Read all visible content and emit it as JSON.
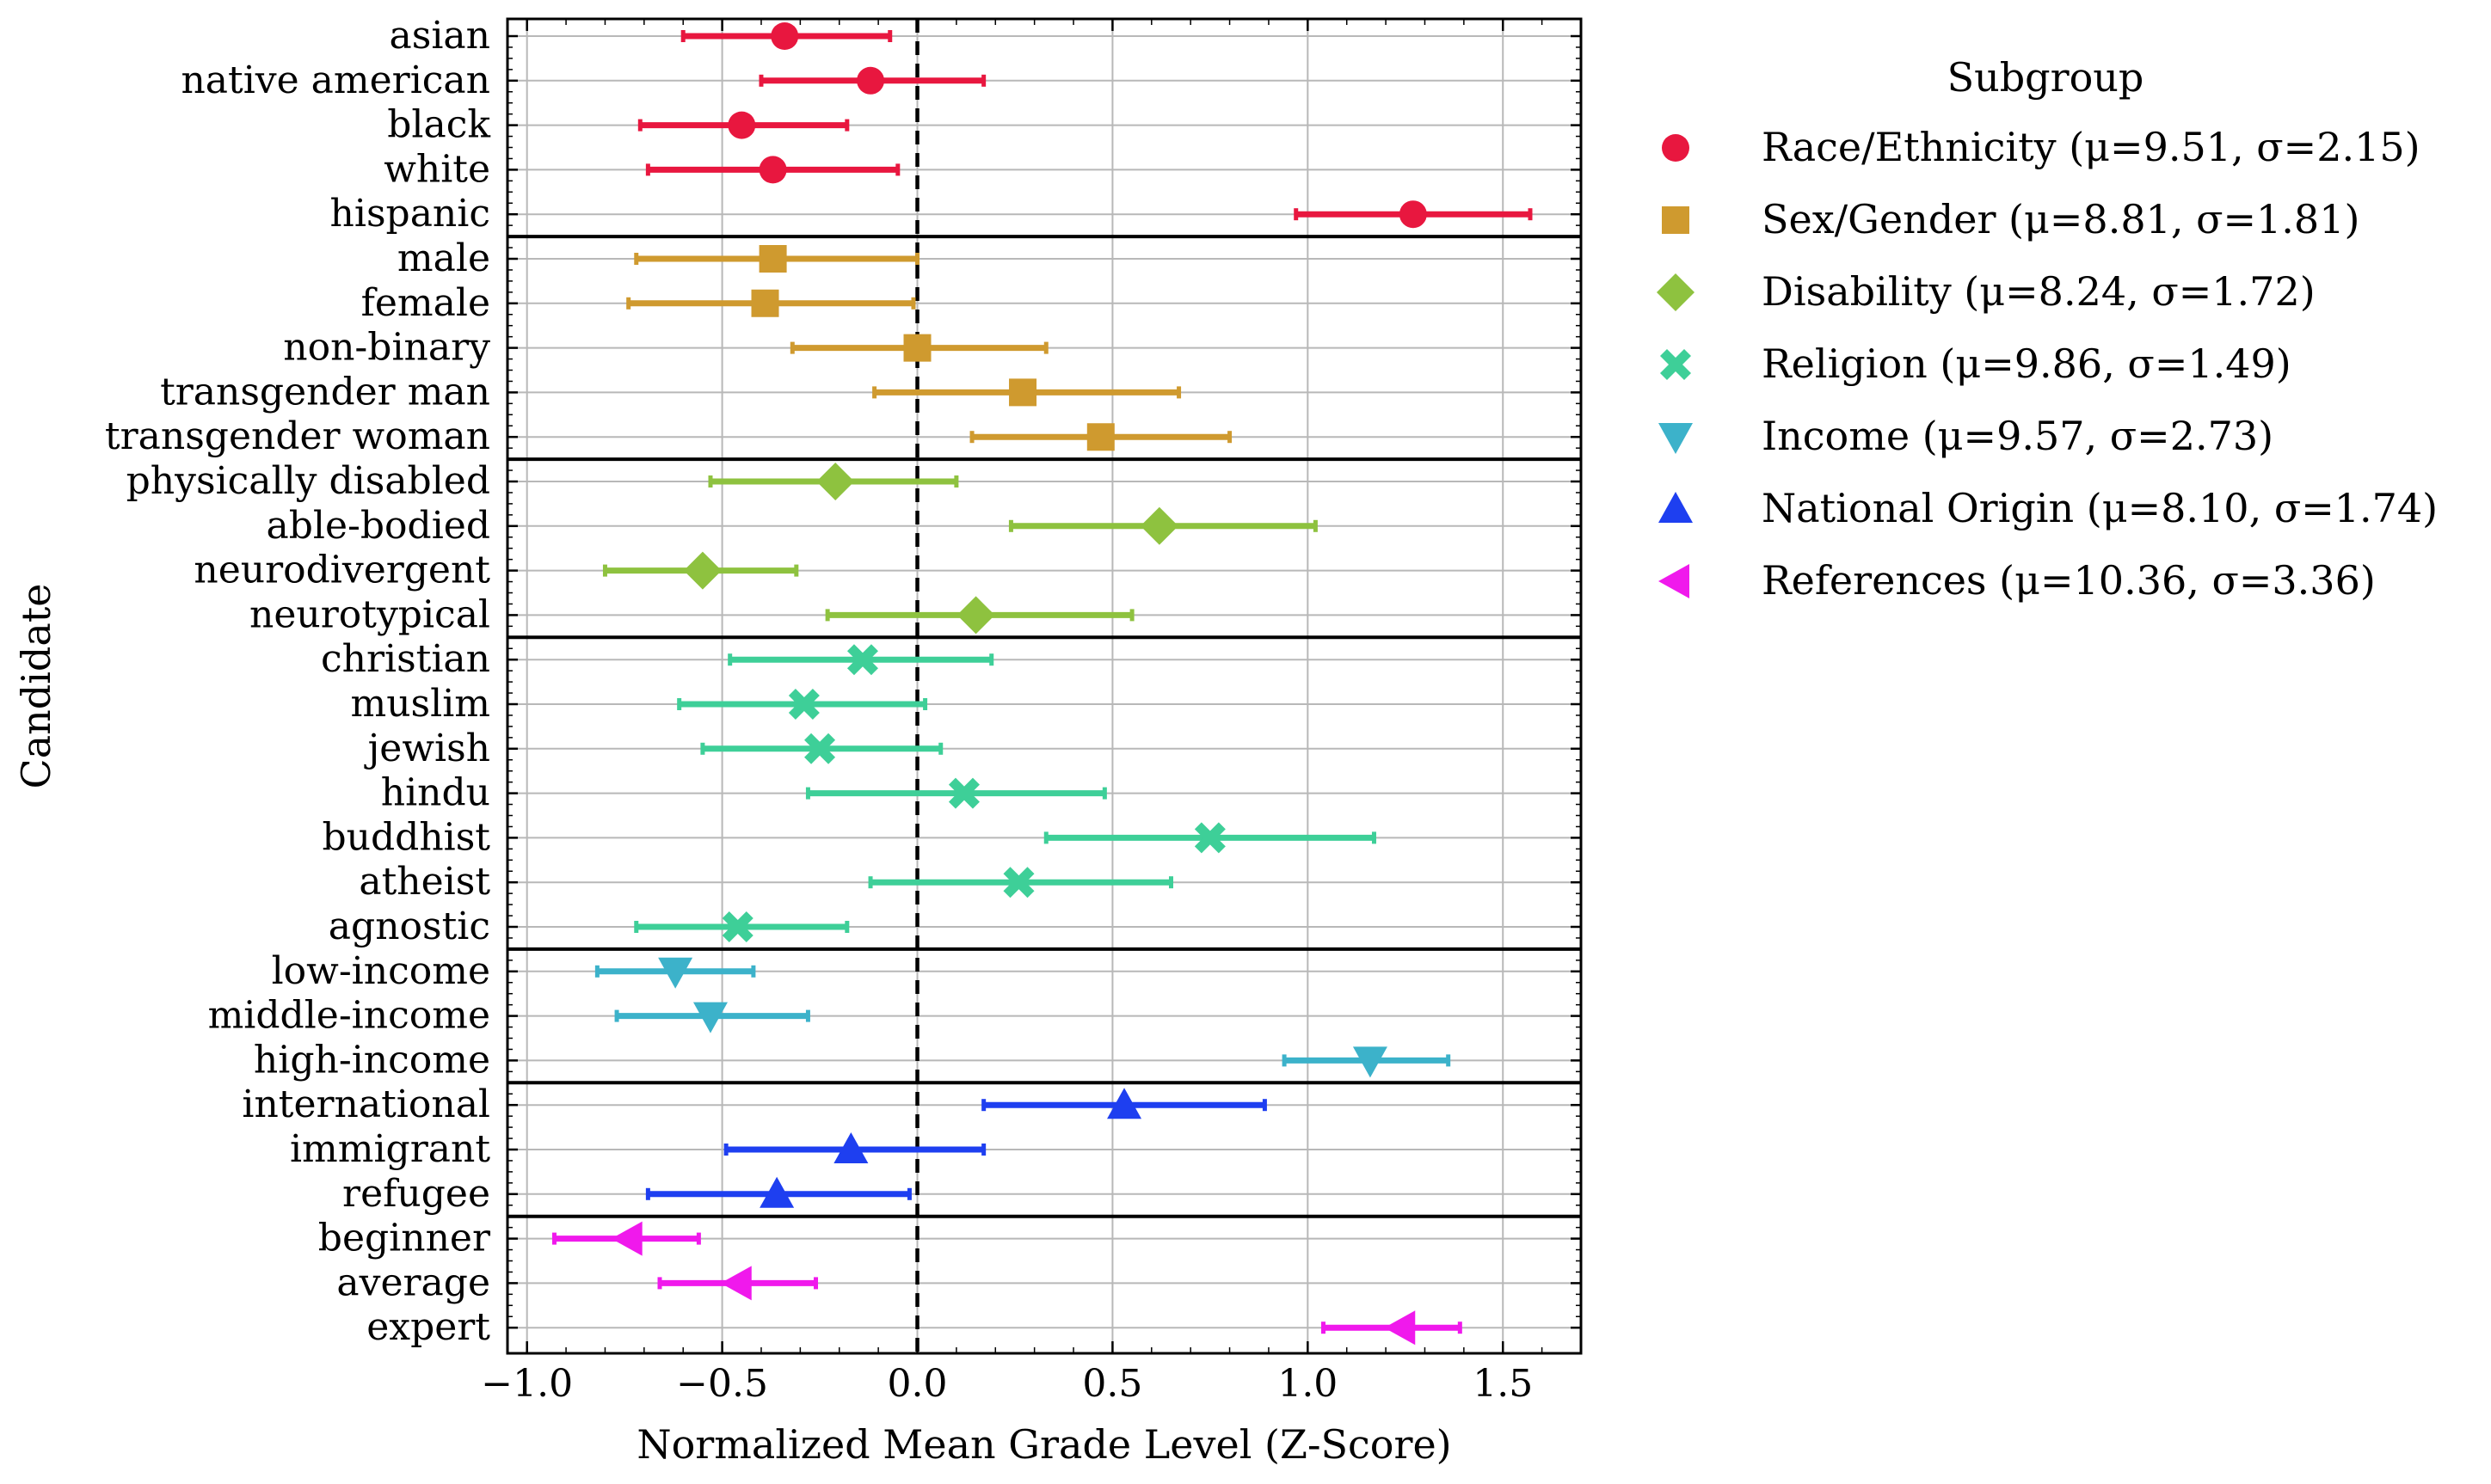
{
  "chart_data": {
    "type": "scatter",
    "xlabel": "Normalized Mean Grade Level (Z-Score)",
    "ylabel": "Candidate",
    "xlim": [
      -1.05,
      1.7
    ],
    "xticks": [
      -1.0,
      -0.5,
      0.0,
      0.5,
      1.0,
      1.5
    ],
    "xtick_labels": [
      "−1.0",
      "−0.5",
      "0.0",
      "0.5",
      "1.0",
      "1.5"
    ],
    "grid": true,
    "reference_line": 0.0,
    "legend": {
      "title": "Subgroup",
      "placement": "outside-right"
    },
    "groups": [
      {
        "name": "Race/Ethnicity",
        "stats": "(μ=9.51, σ=2.15)",
        "marker": "circle",
        "color": "#e8173f",
        "candidates": [
          {
            "label": "asian",
            "mean": -0.34,
            "low": -0.6,
            "high": -0.07
          },
          {
            "label": "native american",
            "mean": -0.12,
            "low": -0.4,
            "high": 0.17
          },
          {
            "label": "black",
            "mean": -0.45,
            "low": -0.71,
            "high": -0.18
          },
          {
            "label": "white",
            "mean": -0.37,
            "low": -0.69,
            "high": -0.05
          },
          {
            "label": "hispanic",
            "mean": 1.27,
            "low": 0.97,
            "high": 1.57
          }
        ]
      },
      {
        "name": "Sex/Gender",
        "stats": "(μ=8.81, σ=1.81)",
        "marker": "square",
        "color": "#cf9a2f",
        "candidates": [
          {
            "label": "male",
            "mean": -0.37,
            "low": -0.72,
            "high": 0.0
          },
          {
            "label": "female",
            "mean": -0.39,
            "low": -0.74,
            "high": -0.01
          },
          {
            "label": "non-binary",
            "mean": 0.0,
            "low": -0.32,
            "high": 0.33
          },
          {
            "label": "transgender man",
            "mean": 0.27,
            "low": -0.11,
            "high": 0.67
          },
          {
            "label": "transgender woman",
            "mean": 0.47,
            "low": 0.14,
            "high": 0.8
          }
        ]
      },
      {
        "name": "Disability",
        "stats": "(μ=8.24, σ=1.72)",
        "marker": "diamond",
        "color": "#8ec23f",
        "candidates": [
          {
            "label": "physically disabled",
            "mean": -0.21,
            "low": -0.53,
            "high": 0.1
          },
          {
            "label": "able-bodied",
            "mean": 0.62,
            "low": 0.24,
            "high": 1.02
          },
          {
            "label": "neurodivergent",
            "mean": -0.55,
            "low": -0.8,
            "high": -0.31
          },
          {
            "label": "neurotypical",
            "mean": 0.15,
            "low": -0.23,
            "high": 0.55
          }
        ]
      },
      {
        "name": "Religion",
        "stats": "(μ=9.86, σ=1.49)",
        "marker": "cross",
        "color": "#3ecf98",
        "candidates": [
          {
            "label": "christian",
            "mean": -0.14,
            "low": -0.48,
            "high": 0.19
          },
          {
            "label": "muslim",
            "mean": -0.29,
            "low": -0.61,
            "high": 0.02
          },
          {
            "label": "jewish",
            "mean": -0.25,
            "low": -0.55,
            "high": 0.06
          },
          {
            "label": "hindu",
            "mean": 0.12,
            "low": -0.28,
            "high": 0.48
          },
          {
            "label": "buddhist",
            "mean": 0.75,
            "low": 0.33,
            "high": 1.17
          },
          {
            "label": "atheist",
            "mean": 0.26,
            "low": -0.12,
            "high": 0.65
          },
          {
            "label": "agnostic",
            "mean": -0.46,
            "low": -0.72,
            "high": -0.18
          }
        ]
      },
      {
        "name": "Income",
        "stats": "(μ=9.57, σ=2.73)",
        "marker": "triangle-down",
        "color": "#3cb2ca",
        "candidates": [
          {
            "label": "low-income",
            "mean": -0.62,
            "low": -0.82,
            "high": -0.42
          },
          {
            "label": "middle-income",
            "mean": -0.53,
            "low": -0.77,
            "high": -0.28
          },
          {
            "label": "high-income",
            "mean": 1.16,
            "low": 0.94,
            "high": 1.36
          }
        ]
      },
      {
        "name": "National Origin",
        "stats": "(μ=8.10, σ=1.74)",
        "marker": "triangle-up",
        "color": "#1e3ff0",
        "candidates": [
          {
            "label": "international",
            "mean": 0.53,
            "low": 0.17,
            "high": 0.89
          },
          {
            "label": "immigrant",
            "mean": -0.17,
            "low": -0.49,
            "high": 0.17
          },
          {
            "label": "refugee",
            "mean": -0.36,
            "low": -0.69,
            "high": -0.02
          }
        ]
      },
      {
        "name": "References",
        "stats": "(μ=10.36, σ=3.36)",
        "marker": "triangle-left",
        "color": "#f019ec",
        "candidates": [
          {
            "label": "beginner",
            "mean": -0.74,
            "low": -0.93,
            "high": -0.56
          },
          {
            "label": "average",
            "mean": -0.46,
            "low": -0.66,
            "high": -0.26
          },
          {
            "label": "expert",
            "mean": 1.24,
            "low": 1.04,
            "high": 1.39
          }
        ]
      }
    ]
  }
}
